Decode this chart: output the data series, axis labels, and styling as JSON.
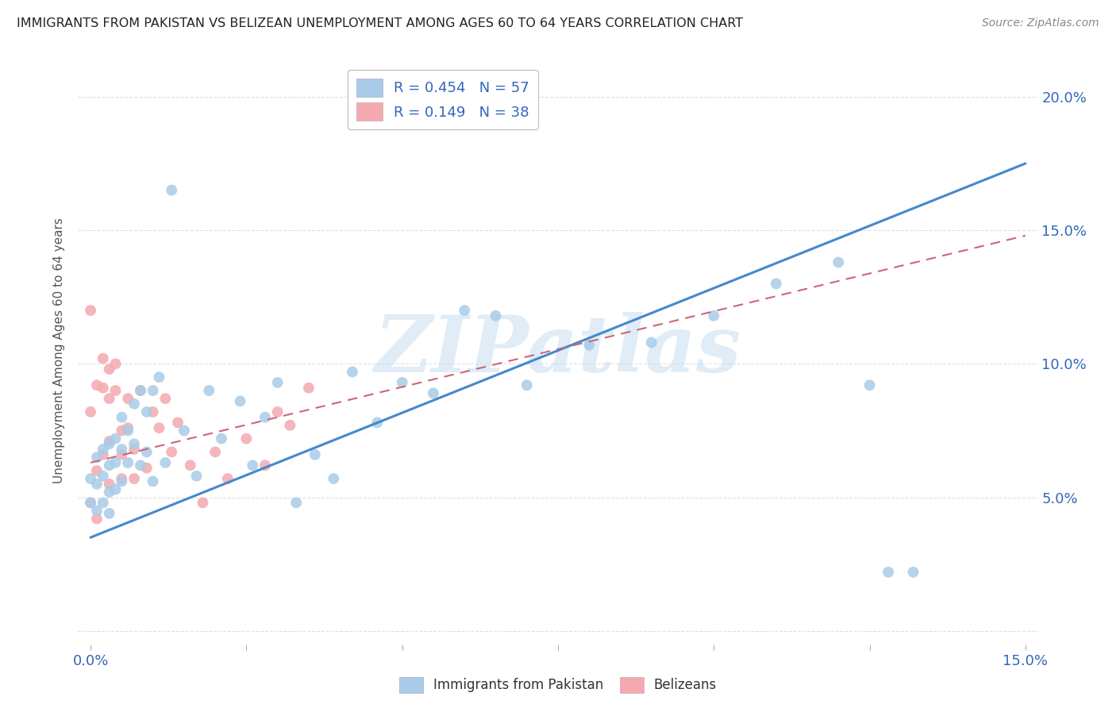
{
  "title": "IMMIGRANTS FROM PAKISTAN VS BELIZEAN UNEMPLOYMENT AMONG AGES 60 TO 64 YEARS CORRELATION CHART",
  "source": "Source: ZipAtlas.com",
  "ylabel": "Unemployment Among Ages 60 to 64 years",
  "xlim": [
    -0.002,
    0.152
  ],
  "ylim": [
    -0.005,
    0.215
  ],
  "xtick_positions": [
    0.0,
    0.025,
    0.05,
    0.075,
    0.1,
    0.125,
    0.15
  ],
  "xtick_labels": [
    "0.0%",
    "",
    "",
    "",
    "",
    "",
    "15.0%"
  ],
  "ytick_positions": [
    0.0,
    0.05,
    0.1,
    0.15,
    0.2
  ],
  "ytick_labels": [
    "",
    "5.0%",
    "10.0%",
    "15.0%",
    "20.0%"
  ],
  "legend_entries": [
    {
      "label": "R = 0.454   N = 57",
      "color": "#a8cce8"
    },
    {
      "label": "R = 0.149   N = 38",
      "color": "#f4a9b0"
    }
  ],
  "pakistan_x": [
    0.0,
    0.0,
    0.001,
    0.001,
    0.001,
    0.002,
    0.002,
    0.002,
    0.003,
    0.003,
    0.003,
    0.003,
    0.004,
    0.004,
    0.004,
    0.005,
    0.005,
    0.005,
    0.006,
    0.006,
    0.007,
    0.007,
    0.008,
    0.008,
    0.009,
    0.009,
    0.01,
    0.01,
    0.011,
    0.012,
    0.013,
    0.015,
    0.017,
    0.019,
    0.021,
    0.024,
    0.026,
    0.028,
    0.03,
    0.033,
    0.036,
    0.039,
    0.042,
    0.046,
    0.05,
    0.055,
    0.06,
    0.065,
    0.07,
    0.08,
    0.09,
    0.1,
    0.11,
    0.12,
    0.125,
    0.128,
    0.132
  ],
  "pakistan_y": [
    0.057,
    0.048,
    0.065,
    0.055,
    0.045,
    0.068,
    0.058,
    0.048,
    0.07,
    0.062,
    0.052,
    0.044,
    0.072,
    0.063,
    0.053,
    0.08,
    0.068,
    0.056,
    0.075,
    0.063,
    0.085,
    0.07,
    0.09,
    0.062,
    0.082,
    0.067,
    0.09,
    0.056,
    0.095,
    0.063,
    0.165,
    0.075,
    0.058,
    0.09,
    0.072,
    0.086,
    0.062,
    0.08,
    0.093,
    0.048,
    0.066,
    0.057,
    0.097,
    0.078,
    0.093,
    0.089,
    0.12,
    0.118,
    0.092,
    0.107,
    0.108,
    0.118,
    0.13,
    0.138,
    0.092,
    0.022,
    0.022
  ],
  "belize_x": [
    0.0,
    0.0,
    0.0,
    0.001,
    0.001,
    0.001,
    0.002,
    0.002,
    0.002,
    0.003,
    0.003,
    0.003,
    0.003,
    0.004,
    0.004,
    0.005,
    0.005,
    0.005,
    0.006,
    0.006,
    0.007,
    0.007,
    0.008,
    0.009,
    0.01,
    0.011,
    0.012,
    0.013,
    0.014,
    0.016,
    0.018,
    0.02,
    0.022,
    0.025,
    0.028,
    0.03,
    0.032,
    0.035
  ],
  "belize_y": [
    0.12,
    0.082,
    0.048,
    0.092,
    0.06,
    0.042,
    0.102,
    0.091,
    0.066,
    0.098,
    0.087,
    0.071,
    0.055,
    0.1,
    0.09,
    0.075,
    0.066,
    0.057,
    0.087,
    0.076,
    0.068,
    0.057,
    0.09,
    0.061,
    0.082,
    0.076,
    0.087,
    0.067,
    0.078,
    0.062,
    0.048,
    0.067,
    0.057,
    0.072,
    0.062,
    0.082,
    0.077,
    0.091
  ],
  "pak_line_x": [
    0.0,
    0.15
  ],
  "pak_line_y": [
    0.035,
    0.175
  ],
  "bel_line_x": [
    0.0,
    0.15
  ],
  "bel_line_y": [
    0.063,
    0.148
  ],
  "scatter_color_pakistan": "#a8cce8",
  "scatter_color_belize": "#f4a9b0",
  "line_color_pakistan": "#4488cc",
  "line_color_belize": "#cc6677",
  "watermark": "ZIPatlas",
  "background_color": "#ffffff",
  "grid_color": "#dddddd"
}
